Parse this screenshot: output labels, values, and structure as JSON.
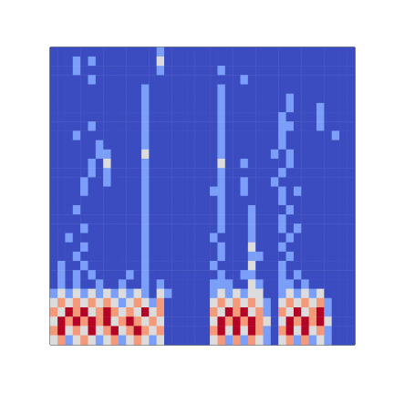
{
  "chart_data": {
    "type": "heatmap",
    "tick_labels": false,
    "clim": [
      0,
      4
    ],
    "cells": [
      [
        0,
        0,
        0,
        0,
        0,
        0,
        0,
        0,
        0,
        0,
        0,
        0,
        0,
        0,
        1,
        0,
        0,
        0,
        0,
        0,
        0,
        0,
        0,
        0,
        0,
        0,
        0,
        0,
        0,
        0,
        0,
        0,
        0,
        0,
        0,
        0,
        0,
        0,
        0,
        0
      ],
      [
        0,
        0,
        0,
        1,
        0,
        1,
        0,
        0,
        0,
        0,
        0,
        0,
        0,
        0,
        2,
        0,
        0,
        0,
        0,
        0,
        0,
        0,
        0,
        0,
        0,
        0,
        0,
        0,
        0,
        0,
        0,
        0,
        0,
        0,
        0,
        0,
        0,
        0,
        0,
        0
      ],
      [
        0,
        0,
        0,
        1,
        0,
        0,
        0,
        0,
        0,
        0,
        0,
        0,
        0,
        0,
        1,
        0,
        0,
        0,
        0,
        0,
        0,
        0,
        1,
        0,
        0,
        0,
        0,
        0,
        0,
        0,
        0,
        0,
        0,
        0,
        0,
        0,
        0,
        0,
        0,
        0
      ],
      [
        0,
        0,
        0,
        0,
        0,
        1,
        0,
        0,
        0,
        0,
        0,
        0,
        0,
        0,
        0,
        0,
        0,
        0,
        0,
        0,
        0,
        0,
        0,
        0,
        0,
        1,
        0,
        0,
        0,
        0,
        0,
        0,
        0,
        0,
        0,
        0,
        0,
        0,
        0,
        0
      ],
      [
        0,
        0,
        0,
        0,
        0,
        0,
        0,
        0,
        0,
        0,
        0,
        0,
        1,
        0,
        0,
        0,
        0,
        0,
        0,
        0,
        0,
        0,
        1,
        0,
        0,
        0,
        0,
        0,
        0,
        0,
        0,
        0,
        0,
        0,
        0,
        0,
        0,
        0,
        0,
        0
      ],
      [
        0,
        0,
        0,
        0,
        0,
        0,
        0,
        0,
        0,
        0,
        0,
        0,
        1,
        0,
        0,
        0,
        0,
        0,
        0,
        0,
        0,
        0,
        1,
        0,
        0,
        0,
        0,
        0,
        0,
        0,
        0,
        1,
        0,
        0,
        0,
        0,
        0,
        0,
        0,
        0
      ],
      [
        0,
        0,
        0,
        0,
        0,
        0,
        0,
        0,
        0,
        0,
        0,
        0,
        1,
        0,
        0,
        0,
        0,
        0,
        0,
        0,
        0,
        0,
        1,
        0,
        0,
        0,
        0,
        0,
        0,
        0,
        0,
        1,
        0,
        0,
        0,
        1,
        0,
        0,
        0,
        0
      ],
      [
        0,
        0,
        0,
        0,
        0,
        0,
        0,
        0,
        0,
        0,
        0,
        0,
        1,
        0,
        0,
        0,
        0,
        0,
        0,
        0,
        0,
        0,
        1,
        0,
        0,
        0,
        0,
        0,
        0,
        0,
        1,
        0,
        0,
        0,
        0,
        1,
        0,
        0,
        0,
        0
      ],
      [
        0,
        0,
        0,
        0,
        0,
        1,
        0,
        0,
        0,
        0,
        0,
        0,
        1,
        0,
        0,
        0,
        0,
        0,
        0,
        0,
        0,
        0,
        1,
        0,
        0,
        0,
        0,
        0,
        0,
        0,
        1,
        1,
        0,
        0,
        0,
        1,
        0,
        0,
        0,
        0
      ],
      [
        0,
        0,
        0,
        1,
        0,
        0,
        0,
        0,
        0,
        0,
        0,
        0,
        1,
        0,
        0,
        0,
        0,
        0,
        0,
        0,
        0,
        0,
        1,
        0,
        0,
        0,
        0,
        0,
        0,
        0,
        1,
        0,
        0,
        0,
        0,
        0,
        0,
        1,
        0,
        0
      ],
      [
        0,
        0,
        0,
        0,
        0,
        0,
        1,
        0,
        0,
        0,
        0,
        0,
        1,
        0,
        0,
        0,
        0,
        0,
        0,
        0,
        0,
        0,
        1,
        0,
        0,
        0,
        0,
        0,
        0,
        0,
        1,
        0,
        0,
        0,
        0,
        0,
        0,
        0,
        0,
        0
      ],
      [
        0,
        0,
        0,
        0,
        0,
        0,
        1,
        1,
        0,
        0,
        0,
        0,
        2,
        0,
        0,
        0,
        0,
        0,
        0,
        0,
        0,
        0,
        1,
        0,
        0,
        0,
        0,
        0,
        0,
        1,
        0,
        1,
        0,
        0,
        0,
        0,
        0,
        0,
        0,
        0
      ],
      [
        0,
        0,
        0,
        0,
        0,
        1,
        0,
        2,
        0,
        0,
        0,
        0,
        1,
        0,
        0,
        0,
        0,
        0,
        0,
        0,
        0,
        0,
        2,
        0,
        0,
        1,
        0,
        0,
        0,
        0,
        0,
        1,
        0,
        0,
        0,
        0,
        0,
        0,
        0,
        0
      ],
      [
        0,
        0,
        0,
        0,
        0,
        1,
        0,
        1,
        0,
        0,
        0,
        0,
        1,
        0,
        0,
        0,
        0,
        0,
        0,
        0,
        0,
        0,
        1,
        0,
        0,
        0,
        0,
        0,
        0,
        0,
        1,
        0,
        0,
        0,
        0,
        0,
        0,
        0,
        0,
        0
      ],
      [
        0,
        0,
        0,
        0,
        1,
        0,
        0,
        1,
        0,
        0,
        0,
        0,
        1,
        0,
        0,
        0,
        0,
        0,
        0,
        0,
        0,
        0,
        1,
        0,
        0,
        1,
        0,
        0,
        0,
        1,
        0,
        0,
        0,
        0,
        0,
        0,
        0,
        0,
        0,
        0
      ],
      [
        0,
        0,
        0,
        0,
        1,
        0,
        0,
        0,
        0,
        0,
        0,
        0,
        1,
        0,
        0,
        0,
        0,
        0,
        0,
        0,
        0,
        1,
        1,
        0,
        0,
        1,
        0,
        0,
        0,
        0,
        1,
        0,
        1,
        0,
        0,
        0,
        0,
        0,
        0,
        0
      ],
      [
        0,
        0,
        0,
        0,
        0,
        0,
        0,
        0,
        0,
        0,
        0,
        0,
        1,
        0,
        0,
        0,
        0,
        0,
        0,
        0,
        0,
        0,
        1,
        0,
        0,
        0,
        0,
        0,
        0,
        0,
        1,
        0,
        0,
        0,
        0,
        0,
        0,
        0,
        0,
        0
      ],
      [
        0,
        0,
        0,
        1,
        0,
        0,
        0,
        0,
        0,
        0,
        0,
        0,
        1,
        0,
        0,
        0,
        0,
        0,
        0,
        0,
        0,
        0,
        1,
        0,
        0,
        0,
        1,
        0,
        0,
        0,
        0,
        1,
        0,
        0,
        0,
        0,
        0,
        0,
        0,
        0
      ],
      [
        0,
        0,
        0,
        0,
        0,
        0,
        0,
        0,
        0,
        0,
        0,
        0,
        1,
        0,
        0,
        0,
        0,
        0,
        0,
        0,
        0,
        0,
        1,
        0,
        0,
        0,
        1,
        0,
        0,
        0,
        1,
        0,
        0,
        0,
        0,
        0,
        0,
        0,
        0,
        0
      ],
      [
        0,
        0,
        0,
        0,
        1,
        0,
        0,
        0,
        0,
        0,
        0,
        0,
        1,
        0,
        0,
        0,
        0,
        0,
        0,
        0,
        0,
        0,
        1,
        0,
        0,
        0,
        1,
        0,
        0,
        0,
        1,
        0,
        1,
        0,
        0,
        0,
        0,
        0,
        0,
        0
      ],
      [
        0,
        0,
        1,
        0,
        0,
        0,
        0,
        0,
        0,
        0,
        0,
        0,
        1,
        0,
        0,
        0,
        0,
        0,
        0,
        0,
        0,
        1,
        0,
        0,
        0,
        0,
        1,
        0,
        0,
        0,
        0,
        1,
        0,
        0,
        0,
        0,
        0,
        0,
        0,
        0
      ],
      [
        0,
        0,
        0,
        0,
        1,
        0,
        0,
        0,
        0,
        0,
        0,
        0,
        1,
        0,
        0,
        0,
        0,
        0,
        0,
        0,
        0,
        0,
        1,
        0,
        0,
        0,
        2,
        0,
        0,
        0,
        1,
        0,
        0,
        0,
        0,
        0,
        0,
        0,
        0,
        0
      ],
      [
        0,
        0,
        0,
        1,
        0,
        0,
        0,
        0,
        0,
        0,
        0,
        0,
        1,
        0,
        0,
        0,
        0,
        0,
        0,
        0,
        0,
        0,
        1,
        0,
        0,
        0,
        1,
        1,
        0,
        0,
        0,
        1,
        0,
        0,
        0,
        0,
        0,
        0,
        0,
        0
      ],
      [
        0,
        1,
        0,
        0,
        1,
        0,
        0,
        0,
        0,
        0,
        0,
        0,
        1,
        0,
        0,
        0,
        0,
        0,
        0,
        0,
        0,
        1,
        0,
        0,
        0,
        0,
        2,
        0,
        0,
        0,
        1,
        0,
        0,
        0,
        0,
        0,
        0,
        0,
        0,
        0
      ],
      [
        0,
        1,
        0,
        1,
        0,
        1,
        0,
        0,
        0,
        0,
        1,
        0,
        1,
        0,
        0,
        0,
        0,
        0,
        0,
        0,
        0,
        0,
        1,
        0,
        0,
        1,
        1,
        0,
        0,
        0,
        1,
        0,
        1,
        0,
        0,
        0,
        0,
        0,
        0,
        0
      ],
      [
        0,
        1,
        0,
        1,
        0,
        0,
        1,
        0,
        0,
        1,
        0,
        0,
        1,
        0,
        1,
        0,
        0,
        0,
        0,
        0,
        0,
        1,
        1,
        1,
        0,
        0,
        2,
        1,
        0,
        0,
        1,
        1,
        0,
        1,
        0,
        0,
        0,
        0,
        0,
        0
      ],
      [
        1,
        2,
        1,
        2,
        1,
        2,
        1,
        2,
        1,
        2,
        1,
        2,
        1,
        0,
        2,
        1,
        0,
        0,
        0,
        0,
        0,
        1,
        2,
        1,
        2,
        1,
        2,
        2,
        0,
        0,
        1,
        2,
        1,
        2,
        1,
        2,
        0,
        0,
        0,
        0
      ],
      [
        2,
        3,
        2,
        3,
        2,
        3,
        2,
        3,
        2,
        1,
        2,
        3,
        2,
        1,
        3,
        0,
        0,
        0,
        0,
        0,
        0,
        2,
        3,
        2,
        3,
        2,
        3,
        2,
        1,
        0,
        2,
        3,
        2,
        3,
        2,
        3,
        1,
        0,
        0,
        0
      ],
      [
        3,
        2,
        4,
        3,
        4,
        2,
        3,
        4,
        3,
        2,
        3,
        2,
        4,
        2,
        3,
        0,
        0,
        0,
        0,
        0,
        0,
        3,
        2,
        4,
        3,
        4,
        2,
        3,
        1,
        0,
        3,
        2,
        4,
        2,
        3,
        4,
        1,
        0,
        0,
        0
      ],
      [
        2,
        4,
        3,
        4,
        3,
        4,
        3,
        4,
        2,
        3,
        4,
        3,
        2,
        3,
        2,
        0,
        0,
        0,
        0,
        0,
        0,
        2,
        4,
        3,
        4,
        3,
        4,
        3,
        2,
        0,
        2,
        4,
        3,
        4,
        3,
        4,
        2,
        0,
        0,
        0
      ],
      [
        3,
        4,
        2,
        3,
        2,
        4,
        2,
        3,
        4,
        2,
        3,
        4,
        3,
        2,
        3,
        0,
        0,
        0,
        0,
        0,
        0,
        3,
        4,
        2,
        4,
        2,
        4,
        3,
        1,
        0,
        3,
        4,
        2,
        4,
        2,
        3,
        1,
        0,
        0,
        0
      ],
      [
        2,
        3,
        1,
        2,
        3,
        2,
        1,
        2,
        3,
        1,
        2,
        3,
        2,
        1,
        2,
        0,
        0,
        0,
        0,
        0,
        0,
        2,
        3,
        1,
        3,
        1,
        3,
        2,
        1,
        0,
        2,
        3,
        1,
        3,
        1,
        2,
        1,
        0,
        0,
        0
      ]
    ]
  }
}
